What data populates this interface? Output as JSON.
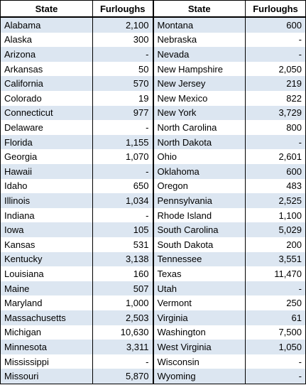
{
  "headers": {
    "left_state": "State",
    "left_furloughs": "Furloughs",
    "right_state": "State",
    "right_furloughs": "Furloughs"
  },
  "rows": [
    {
      "s1": "Alabama",
      "f1": "2,100",
      "s2": "Montana",
      "f2": "600"
    },
    {
      "s1": "Alaska",
      "f1": "300",
      "s2": "Nebraska",
      "f2": "-"
    },
    {
      "s1": "Arizona",
      "f1": "-",
      "s2": "Nevada",
      "f2": "-"
    },
    {
      "s1": "Arkansas",
      "f1": "50",
      "s2": "New Hampshire",
      "f2": "2,050"
    },
    {
      "s1": "California",
      "f1": "570",
      "s2": "New Jersey",
      "f2": "219"
    },
    {
      "s1": "Colorado",
      "f1": "19",
      "s2": "New Mexico",
      "f2": "822"
    },
    {
      "s1": "Connecticut",
      "f1": "977",
      "s2": "New York",
      "f2": "3,729"
    },
    {
      "s1": "Delaware",
      "f1": "-",
      "s2": "North Carolina",
      "f2": "800"
    },
    {
      "s1": "Florida",
      "f1": "1,155",
      "s2": "North Dakota",
      "f2": "-"
    },
    {
      "s1": "Georgia",
      "f1": "1,070",
      "s2": "Ohio",
      "f2": "2,601"
    },
    {
      "s1": "Hawaii",
      "f1": "-",
      "s2": "Oklahoma",
      "f2": "600"
    },
    {
      "s1": "Idaho",
      "f1": "650",
      "s2": "Oregon",
      "f2": "483"
    },
    {
      "s1": "Illinois",
      "f1": "1,034",
      "s2": "Pennsylvania",
      "f2": "2,525"
    },
    {
      "s1": "Indiana",
      "f1": "-",
      "s2": "Rhode Island",
      "f2": "1,100"
    },
    {
      "s1": "Iowa",
      "f1": "105",
      "s2": "South Carolina",
      "f2": "5,029"
    },
    {
      "s1": "Kansas",
      "f1": "531",
      "s2": "South Dakota",
      "f2": "200"
    },
    {
      "s1": "Kentucky",
      "f1": "3,138",
      "s2": "Tennessee",
      "f2": "3,551"
    },
    {
      "s1": "Louisiana",
      "f1": "160",
      "s2": "Texas",
      "f2": "11,470"
    },
    {
      "s1": "Maine",
      "f1": "507",
      "s2": "Utah",
      "f2": "-"
    },
    {
      "s1": "Maryland",
      "f1": "1,000",
      "s2": "Vermont",
      "f2": "250"
    },
    {
      "s1": "Massachusetts",
      "f1": "2,503",
      "s2": "Virginia",
      "f2": "61"
    },
    {
      "s1": "Michigan",
      "f1": "10,630",
      "s2": "Washington",
      "f2": "7,500"
    },
    {
      "s1": "Minnesota",
      "f1": "3,311",
      "s2": "West Virginia",
      "f2": "1,050"
    },
    {
      "s1": "Mississippi",
      "f1": "-",
      "s2": "Wisconsin",
      "f2": "-"
    },
    {
      "s1": "Missouri",
      "f1": "5,870",
      "s2": "Wyoming",
      "f2": "-"
    }
  ],
  "colors": {
    "band": "#dce6f1",
    "border": "#000000"
  }
}
